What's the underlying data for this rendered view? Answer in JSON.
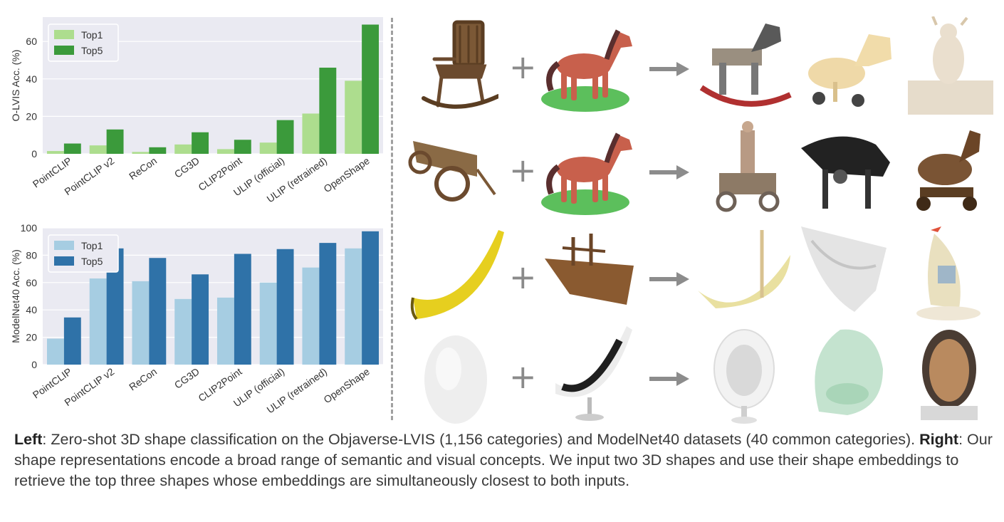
{
  "chart_data": [
    {
      "type": "bar",
      "categories": [
        "PointCLIP",
        "PointCLIP v2",
        "ReCon",
        "CG3D",
        "CLIP2Point",
        "ULIP (official)",
        "ULIP (retrained)",
        "OpenShape"
      ],
      "series": [
        {
          "name": "Top1",
          "values": [
            1.5,
            4.5,
            1,
            5,
            2.5,
            6,
            21.5,
            39
          ]
        },
        {
          "name": "Top5",
          "values": [
            5.5,
            13,
            3.5,
            11.5,
            7.5,
            18,
            46,
            69
          ]
        }
      ],
      "colors": [
        "#addd8e",
        "#3b9a3b"
      ],
      "ylabel": "O-LVIS Acc. (%)",
      "ylim": [
        0,
        73
      ],
      "yticks": [
        0,
        20,
        40,
        60
      ],
      "grid": true,
      "legend": "top-left"
    },
    {
      "type": "bar",
      "categories": [
        "PointCLIP",
        "PointCLIP v2",
        "ReCon",
        "CG3D",
        "CLIP2Point",
        "ULIP (official)",
        "ULIP (retrained)",
        "OpenShape"
      ],
      "series": [
        {
          "name": "Top1",
          "values": [
            19,
            63,
            61,
            48,
            49,
            60,
            71,
            85
          ]
        },
        {
          "name": "Top5",
          "values": [
            34.5,
            85,
            78,
            66,
            81,
            84.5,
            89,
            97.5
          ]
        }
      ],
      "colors": [
        "#a6cde2",
        "#2f72a8"
      ],
      "ylabel": "ModelNet40 Acc. (%)",
      "ylim": [
        0,
        100
      ],
      "yticks": [
        0,
        20,
        40,
        60,
        80,
        100
      ],
      "grid": true,
      "legend": "top-left"
    }
  ],
  "examples": [
    {
      "query_a": "rocking-chair",
      "query_b": "horse",
      "results": [
        "rocking-horse",
        "wooden-horse-cart",
        "figurine-diorama"
      ]
    },
    {
      "query_a": "wooden-cart",
      "query_b": "horse",
      "results": [
        "horse-cart-statue",
        "mechanical-horse",
        "trojan-horse"
      ]
    },
    {
      "query_a": "banana",
      "query_b": "wooden-ship",
      "results": [
        "banana-boat",
        "white-boat",
        "sail-boat"
      ]
    },
    {
      "query_a": "egg",
      "query_b": "lounge-chair",
      "results": [
        "egg-chair-white",
        "egg-chair-green",
        "egg-chair-brown"
      ]
    }
  ],
  "symbols": {
    "plus": "+"
  },
  "caption": {
    "left_label": "Left",
    "left_text": ": Zero-shot 3D shape classification on the Objaverse-LVIS (1,156 categories) and ModelNet40 datasets (40 common categories). ",
    "right_label": "Right",
    "right_text": ": Our shape representations encode a broad range of semantic and visual concepts. We input two 3D shapes and use their shape embeddings to retrieve the top three shapes whose embeddings are simultaneously closest to both inputs."
  }
}
